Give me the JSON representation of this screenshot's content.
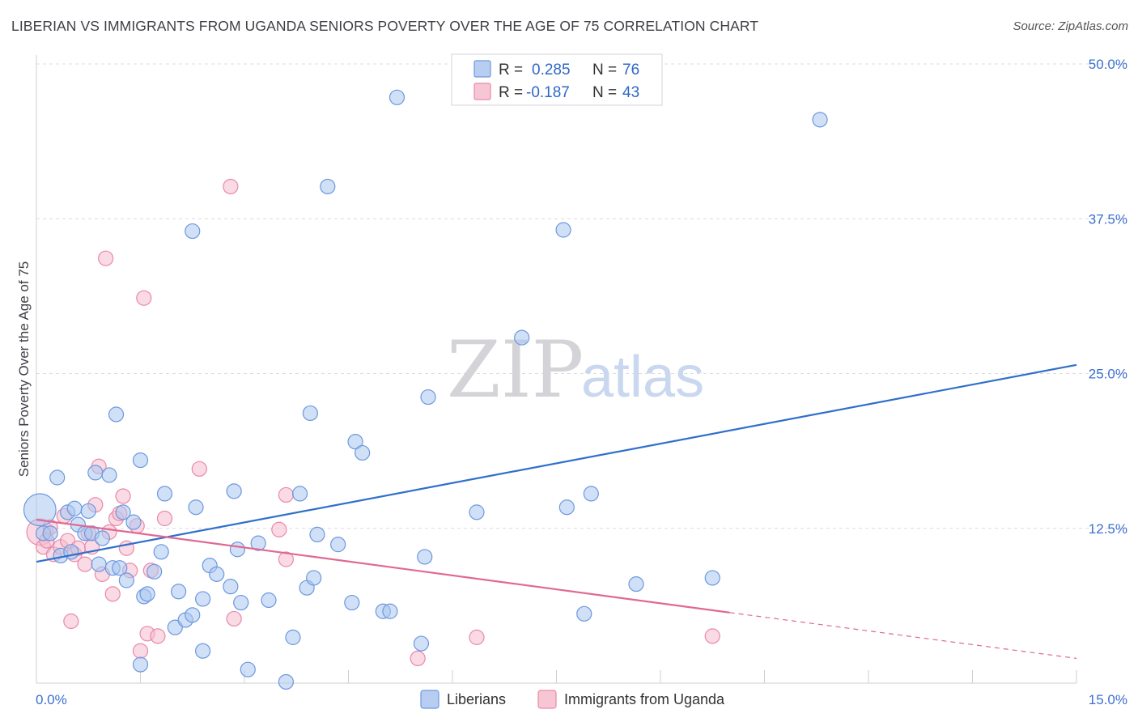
{
  "title": "LIBERIAN VS IMMIGRANTS FROM UGANDA SENIORS POVERTY OVER THE AGE OF 75 CORRELATION CHART",
  "source": "Source: ZipAtlas.com",
  "watermark": {
    "zip": "ZIP",
    "atlas": "atlas"
  },
  "colors": {
    "blue_fill": "#aac6f0",
    "blue_stroke": "#6d98de",
    "blue_line": "#2f6fcc",
    "pink_fill": "#f6bccd",
    "pink_stroke": "#e98aa8",
    "pink_line": "#e06892",
    "grid": "#dcdcdc",
    "axis_text": "#3b6fcf"
  },
  "legend": {
    "rows": [
      {
        "r_label": "R = ",
        "r_value": "0.285",
        "n_label": "N = ",
        "n_value": "76"
      },
      {
        "r_label": "R = ",
        "r_value": "-0.187",
        "n_label": "N = ",
        "n_value": "43"
      }
    ]
  },
  "bottom_legend": [
    "Liberians",
    "Immigrants from Uganda"
  ],
  "chart_data": {
    "type": "scatter",
    "xlabel": "",
    "ylabel": "Seniors Poverty Over the Age of 75",
    "xlim": [
      0,
      15
    ],
    "ylim": [
      0,
      50
    ],
    "x_tick_labels": [
      {
        "value": 0,
        "label": "0.0%"
      },
      {
        "value": 15,
        "label": "15.0%"
      }
    ],
    "y_tick_labels": [
      {
        "value": 12.5,
        "label": "12.5%"
      },
      {
        "value": 25,
        "label": "25.0%"
      },
      {
        "value": 37.5,
        "label": "37.5%"
      },
      {
        "value": 50,
        "label": "50.0%"
      }
    ],
    "grid": true,
    "series": [
      {
        "name": "Liberians",
        "r": 0.285,
        "n": 76,
        "trend": {
          "x0": 0,
          "y0": 9.8,
          "x1": 15,
          "y1": 25.7
        },
        "points": [
          [
            0.05,
            14.0,
            2.2
          ],
          [
            0.1,
            12.1,
            1
          ],
          [
            0.2,
            12.1,
            1
          ],
          [
            0.3,
            16.6,
            1
          ],
          [
            0.35,
            10.3,
            1
          ],
          [
            0.45,
            13.8,
            1
          ],
          [
            0.5,
            10.6,
            1
          ],
          [
            0.55,
            14.1,
            1
          ],
          [
            0.6,
            12.8,
            1
          ],
          [
            0.7,
            12.1,
            1
          ],
          [
            0.75,
            13.9,
            1
          ],
          [
            0.8,
            12.1,
            1
          ],
          [
            0.85,
            17.0,
            1
          ],
          [
            0.9,
            9.6,
            1
          ],
          [
            0.95,
            11.7,
            1
          ],
          [
            1.05,
            16.8,
            1
          ],
          [
            1.1,
            9.3,
            1
          ],
          [
            1.15,
            21.7,
            1
          ],
          [
            1.2,
            9.3,
            1
          ],
          [
            1.25,
            13.8,
            1
          ],
          [
            1.3,
            8.3,
            1
          ],
          [
            1.4,
            13.0,
            1
          ],
          [
            1.5,
            1.5,
            1
          ],
          [
            1.5,
            18.0,
            1
          ],
          [
            1.55,
            7.0,
            1
          ],
          [
            1.6,
            7.2,
            1
          ],
          [
            1.7,
            9.0,
            1
          ],
          [
            1.8,
            10.6,
            1
          ],
          [
            1.85,
            15.3,
            1
          ],
          [
            2.0,
            4.5,
            1
          ],
          [
            2.05,
            7.4,
            1
          ],
          [
            2.15,
            5.1,
            1
          ],
          [
            2.25,
            36.5,
            1
          ],
          [
            2.25,
            5.5,
            1
          ],
          [
            2.3,
            14.2,
            1
          ],
          [
            2.4,
            6.8,
            1
          ],
          [
            2.4,
            2.6,
            1
          ],
          [
            2.5,
            9.5,
            1
          ],
          [
            2.6,
            8.8,
            1
          ],
          [
            2.8,
            7.8,
            1
          ],
          [
            2.85,
            15.5,
            1
          ],
          [
            2.9,
            10.8,
            1
          ],
          [
            2.95,
            6.5,
            1
          ],
          [
            3.05,
            1.1,
            1
          ],
          [
            3.2,
            11.3,
            1
          ],
          [
            3.35,
            6.7,
            1
          ],
          [
            3.6,
            0.1,
            1
          ],
          [
            3.7,
            3.7,
            1
          ],
          [
            3.8,
            15.3,
            1
          ],
          [
            3.9,
            7.7,
            1
          ],
          [
            3.95,
            21.8,
            1
          ],
          [
            4.0,
            8.5,
            1
          ],
          [
            4.05,
            12.0,
            1
          ],
          [
            4.2,
            40.1,
            1
          ],
          [
            4.35,
            11.2,
            1
          ],
          [
            4.55,
            6.5,
            1
          ],
          [
            4.6,
            19.5,
            1
          ],
          [
            4.7,
            18.6,
            1
          ],
          [
            5.0,
            5.8,
            1
          ],
          [
            5.1,
            5.8,
            1
          ],
          [
            5.2,
            47.3,
            1
          ],
          [
            5.55,
            3.2,
            1
          ],
          [
            5.6,
            10.2,
            1
          ],
          [
            5.65,
            23.1,
            1
          ],
          [
            6.35,
            13.8,
            1
          ],
          [
            7.0,
            27.9,
            1
          ],
          [
            7.6,
            36.6,
            1
          ],
          [
            7.65,
            14.2,
            1
          ],
          [
            7.9,
            5.6,
            1
          ],
          [
            8.0,
            15.3,
            1
          ],
          [
            8.65,
            8.0,
            1
          ],
          [
            9.75,
            8.5,
            1
          ],
          [
            11.3,
            45.5,
            1
          ]
        ]
      },
      {
        "name": "Immigrants from Uganda",
        "r": -0.187,
        "n": 43,
        "trend": {
          "x0": 0,
          "y0": 13.2,
          "x1": 10.0,
          "y1": 5.7
        },
        "trend_dashed": {
          "x0": 10.0,
          "y0": 5.7,
          "x1": 15,
          "y1": 2.0
        },
        "points": [
          [
            0.05,
            12.2,
            1.8
          ],
          [
            0.1,
            11.0,
            1
          ],
          [
            0.15,
            11.5,
            1
          ],
          [
            0.2,
            12.6,
            1
          ],
          [
            0.25,
            10.4,
            1
          ],
          [
            0.35,
            11.0,
            1
          ],
          [
            0.4,
            13.5,
            1
          ],
          [
            0.45,
            11.5,
            1
          ],
          [
            0.5,
            5.0,
            1
          ],
          [
            0.55,
            10.4,
            1
          ],
          [
            0.6,
            10.9,
            1
          ],
          [
            0.7,
            9.6,
            1
          ],
          [
            0.75,
            12.1,
            1
          ],
          [
            0.8,
            11.0,
            1
          ],
          [
            0.85,
            14.4,
            1
          ],
          [
            0.9,
            17.5,
            1
          ],
          [
            0.95,
            8.8,
            1
          ],
          [
            1.0,
            34.3,
            1
          ],
          [
            1.05,
            12.2,
            1
          ],
          [
            1.1,
            7.2,
            1
          ],
          [
            1.15,
            13.3,
            1
          ],
          [
            1.2,
            13.7,
            1
          ],
          [
            1.25,
            15.1,
            1
          ],
          [
            1.3,
            10.9,
            1
          ],
          [
            1.35,
            9.1,
            1
          ],
          [
            1.45,
            12.7,
            1
          ],
          [
            1.5,
            2.6,
            1
          ],
          [
            1.55,
            31.1,
            1
          ],
          [
            1.6,
            4.0,
            1
          ],
          [
            1.65,
            9.1,
            1
          ],
          [
            1.75,
            3.8,
            1
          ],
          [
            1.85,
            13.3,
            1
          ],
          [
            2.35,
            17.3,
            1
          ],
          [
            2.8,
            40.1,
            1
          ],
          [
            2.85,
            5.2,
            1
          ],
          [
            3.5,
            12.4,
            1
          ],
          [
            3.6,
            15.2,
            1
          ],
          [
            3.6,
            10.0,
            1
          ],
          [
            5.5,
            2.0,
            1
          ],
          [
            6.35,
            3.7,
            1
          ],
          [
            9.75,
            3.8,
            1
          ]
        ]
      }
    ]
  }
}
